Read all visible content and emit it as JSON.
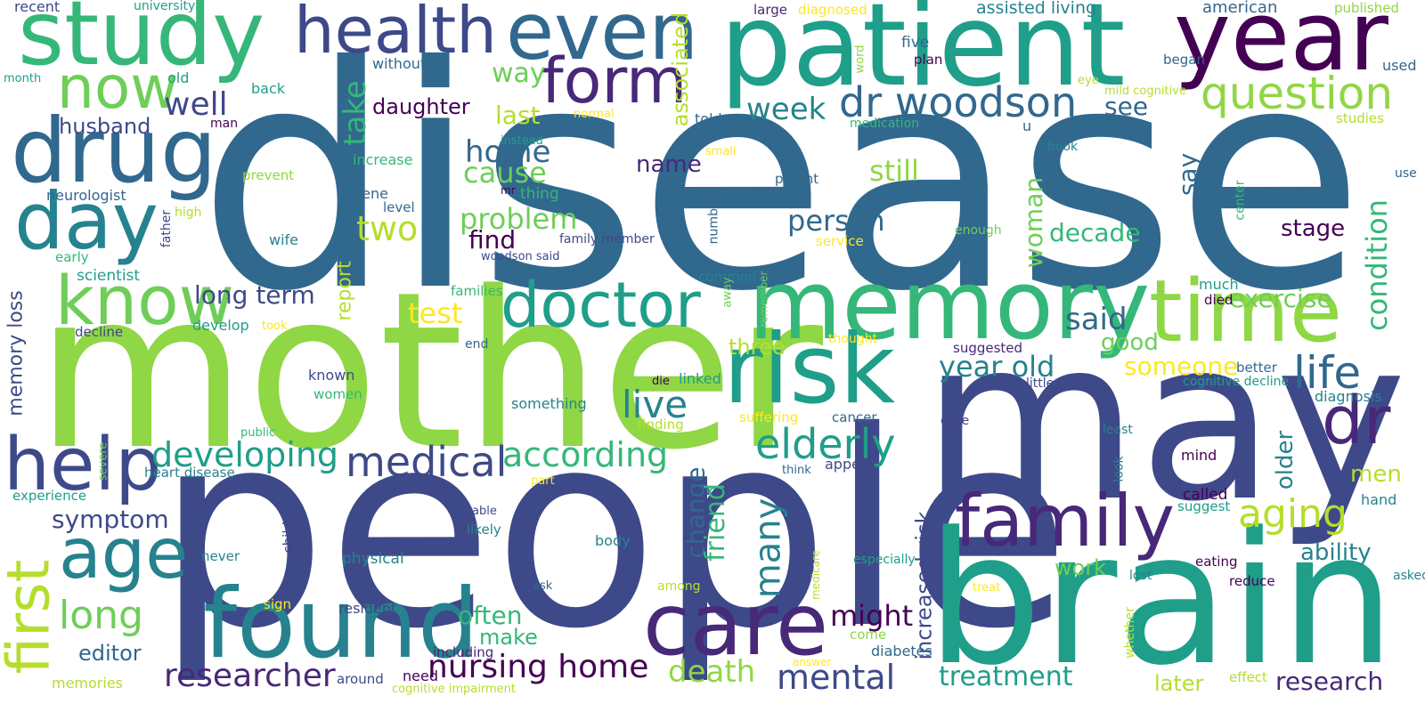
{
  "palette": {
    "background": "#ffffff",
    "c1": "#440154",
    "c2": "#482878",
    "c3": "#3e4989",
    "c4": "#31688e",
    "c5": "#26828e",
    "c6": "#1f9e89",
    "c7": "#35b779",
    "c8": "#6ece58",
    "c9": "#8fd744",
    "c10": "#b5de2b",
    "c11": "#fde725"
  },
  "words": [
    {
      "text": "disease",
      "color": "#31688e"
    },
    {
      "text": "mother",
      "color": "#8fd744"
    },
    {
      "text": "people",
      "color": "#3e4989"
    },
    {
      "text": "may",
      "color": "#3e4989"
    },
    {
      "text": "brain",
      "color": "#1f9e89"
    },
    {
      "text": "patient",
      "color": "#1f9e89"
    },
    {
      "text": "memory",
      "color": "#35b779"
    },
    {
      "text": "year",
      "color": "#440154"
    },
    {
      "text": "study",
      "color": "#35b779"
    },
    {
      "text": "even",
      "color": "#31688e"
    },
    {
      "text": "health",
      "color": "#3e4989"
    },
    {
      "text": "drug",
      "color": "#31688e"
    },
    {
      "text": "day",
      "color": "#26828e"
    },
    {
      "text": "time",
      "color": "#8fd744"
    },
    {
      "text": "risk",
      "color": "#1f9e89"
    },
    {
      "text": "found",
      "color": "#26828e"
    },
    {
      "text": "care",
      "color": "#482878"
    },
    {
      "text": "family",
      "color": "#482878"
    },
    {
      "text": "help",
      "color": "#3e4989"
    },
    {
      "text": "first",
      "color": "#b5de2b"
    },
    {
      "text": "age",
      "color": "#26828e"
    },
    {
      "text": "know",
      "color": "#6ece58"
    },
    {
      "text": "now",
      "color": "#6ece58"
    },
    {
      "text": "doctor",
      "color": "#1f9e89"
    },
    {
      "text": "form",
      "color": "#482878"
    },
    {
      "text": "dr woodson",
      "color": "#31688e"
    },
    {
      "text": "question",
      "color": "#8fd744"
    },
    {
      "text": "dr",
      "color": "#482878"
    },
    {
      "text": "aging",
      "color": "#b5de2b"
    },
    {
      "text": "life",
      "color": "#31688e"
    },
    {
      "text": "elderly",
      "color": "#1f9e89"
    },
    {
      "text": "medical",
      "color": "#3e4989"
    },
    {
      "text": "according",
      "color": "#35b779"
    },
    {
      "text": "developing",
      "color": "#1f9e89"
    },
    {
      "text": "nursing home",
      "color": "#440154"
    },
    {
      "text": "researcher",
      "color": "#482878"
    },
    {
      "text": "long",
      "color": "#6ece58"
    },
    {
      "text": "mental",
      "color": "#3e4989"
    },
    {
      "text": "treatment",
      "color": "#1f9e89"
    },
    {
      "text": "research",
      "color": "#482878"
    },
    {
      "text": "death",
      "color": "#8fd744"
    },
    {
      "text": "many",
      "color": "#26828e"
    },
    {
      "text": "live",
      "color": "#26828e"
    },
    {
      "text": "might",
      "color": "#440154"
    },
    {
      "text": "well",
      "color": "#3e4989"
    },
    {
      "text": "week",
      "color": "#26828e"
    },
    {
      "text": "two",
      "color": "#b5de2b"
    },
    {
      "text": "home",
      "color": "#31688e"
    },
    {
      "text": "cause",
      "color": "#6ece58"
    },
    {
      "text": "problem",
      "color": "#6ece58"
    },
    {
      "text": "test",
      "color": "#fde725"
    },
    {
      "text": "person",
      "color": "#31688e"
    },
    {
      "text": "still",
      "color": "#8fd744"
    },
    {
      "text": "said",
      "color": "#31688e"
    },
    {
      "text": "year old",
      "color": "#26828e"
    },
    {
      "text": "someone",
      "color": "#fde725"
    },
    {
      "text": "decade",
      "color": "#35b779"
    },
    {
      "text": "stage",
      "color": "#440154"
    },
    {
      "text": "exercise",
      "color": "#6ece58"
    },
    {
      "text": "condition",
      "color": "#35b779"
    },
    {
      "text": "long term",
      "color": "#3e4989"
    },
    {
      "text": "symptom",
      "color": "#3e4989"
    },
    {
      "text": "husband",
      "color": "#3e4989"
    },
    {
      "text": "daughter",
      "color": "#440154"
    },
    {
      "text": "last",
      "color": "#b5de2b"
    },
    {
      "text": "way",
      "color": "#6ece58"
    },
    {
      "text": "take",
      "color": "#35b779"
    },
    {
      "text": "associated",
      "color": "#b5de2b"
    },
    {
      "text": "name",
      "color": "#482878"
    },
    {
      "text": "find",
      "color": "#440154"
    },
    {
      "text": "see",
      "color": "#31688e"
    },
    {
      "text": "say",
      "color": "#31688e"
    },
    {
      "text": "woman",
      "color": "#6ece58"
    },
    {
      "text": "good",
      "color": "#6ece58"
    },
    {
      "text": "older",
      "color": "#26828e"
    },
    {
      "text": "men",
      "color": "#b5de2b"
    },
    {
      "text": "ability",
      "color": "#26828e"
    },
    {
      "text": "work",
      "color": "#6ece58"
    },
    {
      "text": "often",
      "color": "#35b779"
    },
    {
      "text": "make",
      "color": "#35b779"
    },
    {
      "text": "editor",
      "color": "#31688e"
    },
    {
      "text": "change",
      "color": "#31688e"
    },
    {
      "text": "friend",
      "color": "#35b779"
    },
    {
      "text": "increased risk",
      "color": "#3e4989"
    },
    {
      "text": "memory loss",
      "color": "#3e4989"
    },
    {
      "text": "report",
      "color": "#b5de2b"
    },
    {
      "text": "three",
      "color": "#b5de2b"
    },
    {
      "text": "later",
      "color": "#b5de2b"
    },
    {
      "text": "recent",
      "color": "#3e4989"
    },
    {
      "text": "university",
      "color": "#1f9e89"
    },
    {
      "text": "month",
      "color": "#1f9e89"
    },
    {
      "text": "old",
      "color": "#1f9e89"
    },
    {
      "text": "man",
      "color": "#440154"
    },
    {
      "text": "back",
      "color": "#1f9e89"
    },
    {
      "text": "without",
      "color": "#31688e"
    },
    {
      "text": "normal",
      "color": "#fde725"
    },
    {
      "text": "large",
      "color": "#482878"
    },
    {
      "text": "diagnosed",
      "color": "#fde725"
    },
    {
      "text": "five",
      "color": "#31688e"
    },
    {
      "text": "word",
      "color": "#8fd744"
    },
    {
      "text": "plan",
      "color": "#440154"
    },
    {
      "text": "assisted living",
      "color": "#26828e"
    },
    {
      "text": "american",
      "color": "#31688e"
    },
    {
      "text": "published",
      "color": "#8fd744"
    },
    {
      "text": "began",
      "color": "#31688e"
    },
    {
      "text": "used",
      "color": "#31688e"
    },
    {
      "text": "eye",
      "color": "#b5de2b"
    },
    {
      "text": "mild cognitive",
      "color": "#b5de2b"
    },
    {
      "text": "studies",
      "color": "#b5de2b"
    },
    {
      "text": "told",
      "color": "#31688e"
    },
    {
      "text": "medication",
      "color": "#35b779"
    },
    {
      "text": "u",
      "color": "#31688e"
    },
    {
      "text": "book",
      "color": "#26828e"
    },
    {
      "text": "instead",
      "color": "#1f9e89"
    },
    {
      "text": "small",
      "color": "#fde725"
    },
    {
      "text": "increase",
      "color": "#35b779"
    },
    {
      "text": "prevent",
      "color": "#8fd744"
    },
    {
      "text": "mr",
      "color": "#440154"
    },
    {
      "text": "thing",
      "color": "#35b779"
    },
    {
      "text": "parent",
      "color": "#31688e"
    },
    {
      "text": "use",
      "color": "#31688e"
    },
    {
      "text": "center",
      "color": "#35b779"
    },
    {
      "text": "neurologist",
      "color": "#31688e"
    },
    {
      "text": "high",
      "color": "#b5de2b"
    },
    {
      "text": "father",
      "color": "#3e4989"
    },
    {
      "text": "gene",
      "color": "#31688e"
    },
    {
      "text": "level",
      "color": "#31688e"
    },
    {
      "text": "number",
      "color": "#31688e"
    },
    {
      "text": "family member",
      "color": "#3e4989"
    },
    {
      "text": "enough",
      "color": "#6ece58"
    },
    {
      "text": "service",
      "color": "#fde725"
    },
    {
      "text": "wife",
      "color": "#26828e"
    },
    {
      "text": "woodson said",
      "color": "#3e4989"
    },
    {
      "text": "early",
      "color": "#35b779"
    },
    {
      "text": "scientist",
      "color": "#1f9e89"
    },
    {
      "text": "families",
      "color": "#35b779"
    },
    {
      "text": "common",
      "color": "#26828e"
    },
    {
      "text": "much",
      "color": "#1f9e89"
    },
    {
      "text": "died",
      "color": "#440154"
    },
    {
      "text": "away",
      "color": "#6ece58"
    },
    {
      "text": "remember",
      "color": "#6ece58"
    },
    {
      "text": "develop",
      "color": "#1f9e89"
    },
    {
      "text": "took",
      "color": "#fde725"
    },
    {
      "text": "decline",
      "color": "#3e4989"
    },
    {
      "text": "thought",
      "color": "#fde725"
    },
    {
      "text": "suggested",
      "color": "#482878"
    },
    {
      "text": "end",
      "color": "#31688e"
    },
    {
      "text": "known",
      "color": "#3e4989"
    },
    {
      "text": "better",
      "color": "#31688e"
    },
    {
      "text": "cognitive decline",
      "color": "#1f9e89"
    },
    {
      "text": "die",
      "color": "#440154"
    },
    {
      "text": "linked",
      "color": "#1f9e89"
    },
    {
      "text": "little",
      "color": "#3e4989"
    },
    {
      "text": "diagnosis",
      "color": "#26828e"
    },
    {
      "text": "women",
      "color": "#35b779"
    },
    {
      "text": "something",
      "color": "#26828e"
    },
    {
      "text": "suffering",
      "color": "#fde725"
    },
    {
      "text": "cancer",
      "color": "#31688e"
    },
    {
      "text": "case",
      "color": "#3e4989"
    },
    {
      "text": "finding",
      "color": "#b5de2b"
    },
    {
      "text": "least",
      "color": "#26828e"
    },
    {
      "text": "public",
      "color": "#35b779"
    },
    {
      "text": "severe",
      "color": "#6ece58"
    },
    {
      "text": "appear",
      "color": "#3e4989"
    },
    {
      "text": "think",
      "color": "#31688e"
    },
    {
      "text": "look",
      "color": "#26828e"
    },
    {
      "text": "mind",
      "color": "#440154"
    },
    {
      "text": "experience",
      "color": "#1f9e89"
    },
    {
      "text": "heart disease",
      "color": "#26828e"
    },
    {
      "text": "part",
      "color": "#fde725"
    },
    {
      "text": "children",
      "color": "#3e4989"
    },
    {
      "text": "able",
      "color": "#3e4989"
    },
    {
      "text": "likely",
      "color": "#26828e"
    },
    {
      "text": "body",
      "color": "#26828e"
    },
    {
      "text": "called",
      "color": "#440154"
    },
    {
      "text": "suggest",
      "color": "#1f9e89"
    },
    {
      "text": "hand",
      "color": "#26828e"
    },
    {
      "text": "never",
      "color": "#26828e"
    },
    {
      "text": "physical",
      "color": "#26828e"
    },
    {
      "text": "ask",
      "color": "#31688e"
    },
    {
      "text": "medicare",
      "color": "#b5de2b"
    },
    {
      "text": "especially",
      "color": "#1f9e89"
    },
    {
      "text": "among",
      "color": "#b5de2b"
    },
    {
      "text": "lost",
      "color": "#26828e"
    },
    {
      "text": "eating",
      "color": "#440154"
    },
    {
      "text": "reduce",
      "color": "#440154"
    },
    {
      "text": "asked",
      "color": "#26828e"
    },
    {
      "text": "whether",
      "color": "#b5de2b"
    },
    {
      "text": "treat",
      "color": "#fde725"
    },
    {
      "text": "sign",
      "color": "#fde725"
    },
    {
      "text": "resident",
      "color": "#3e4989"
    },
    {
      "text": "come",
      "color": "#8fd744"
    },
    {
      "text": "diabetes",
      "color": "#31688e"
    },
    {
      "text": "including",
      "color": "#482878"
    },
    {
      "text": "need",
      "color": "#440154"
    },
    {
      "text": "around",
      "color": "#3e4989"
    },
    {
      "text": "answer",
      "color": "#fde725"
    },
    {
      "text": "memories",
      "color": "#b5de2b"
    },
    {
      "text": "cognitive impairment",
      "color": "#b5de2b"
    },
    {
      "text": "effect",
      "color": "#b5de2b"
    }
  ]
}
